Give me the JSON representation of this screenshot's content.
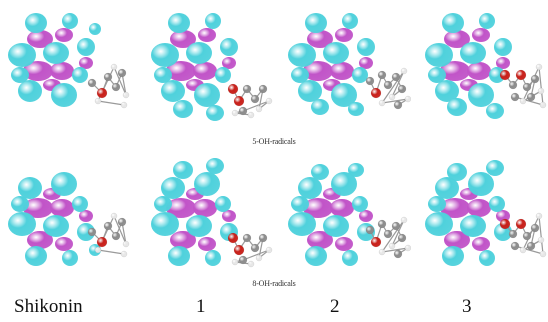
{
  "rows": [
    {
      "caption": "5-OH-radicals"
    },
    {
      "caption": "8-OH-radicals"
    }
  ],
  "columns": [
    {
      "label": "Shikonin"
    },
    {
      "label": "1"
    },
    {
      "label": "2"
    },
    {
      "label": "3"
    }
  ],
  "colors": {
    "orbital_positive": "#4fd1dc",
    "orbital_negative": "#c154c8",
    "atom_carbon": "#8c8c8c",
    "atom_hydrogen": "#e6e6e6",
    "atom_oxygen": "#c8201a"
  }
}
